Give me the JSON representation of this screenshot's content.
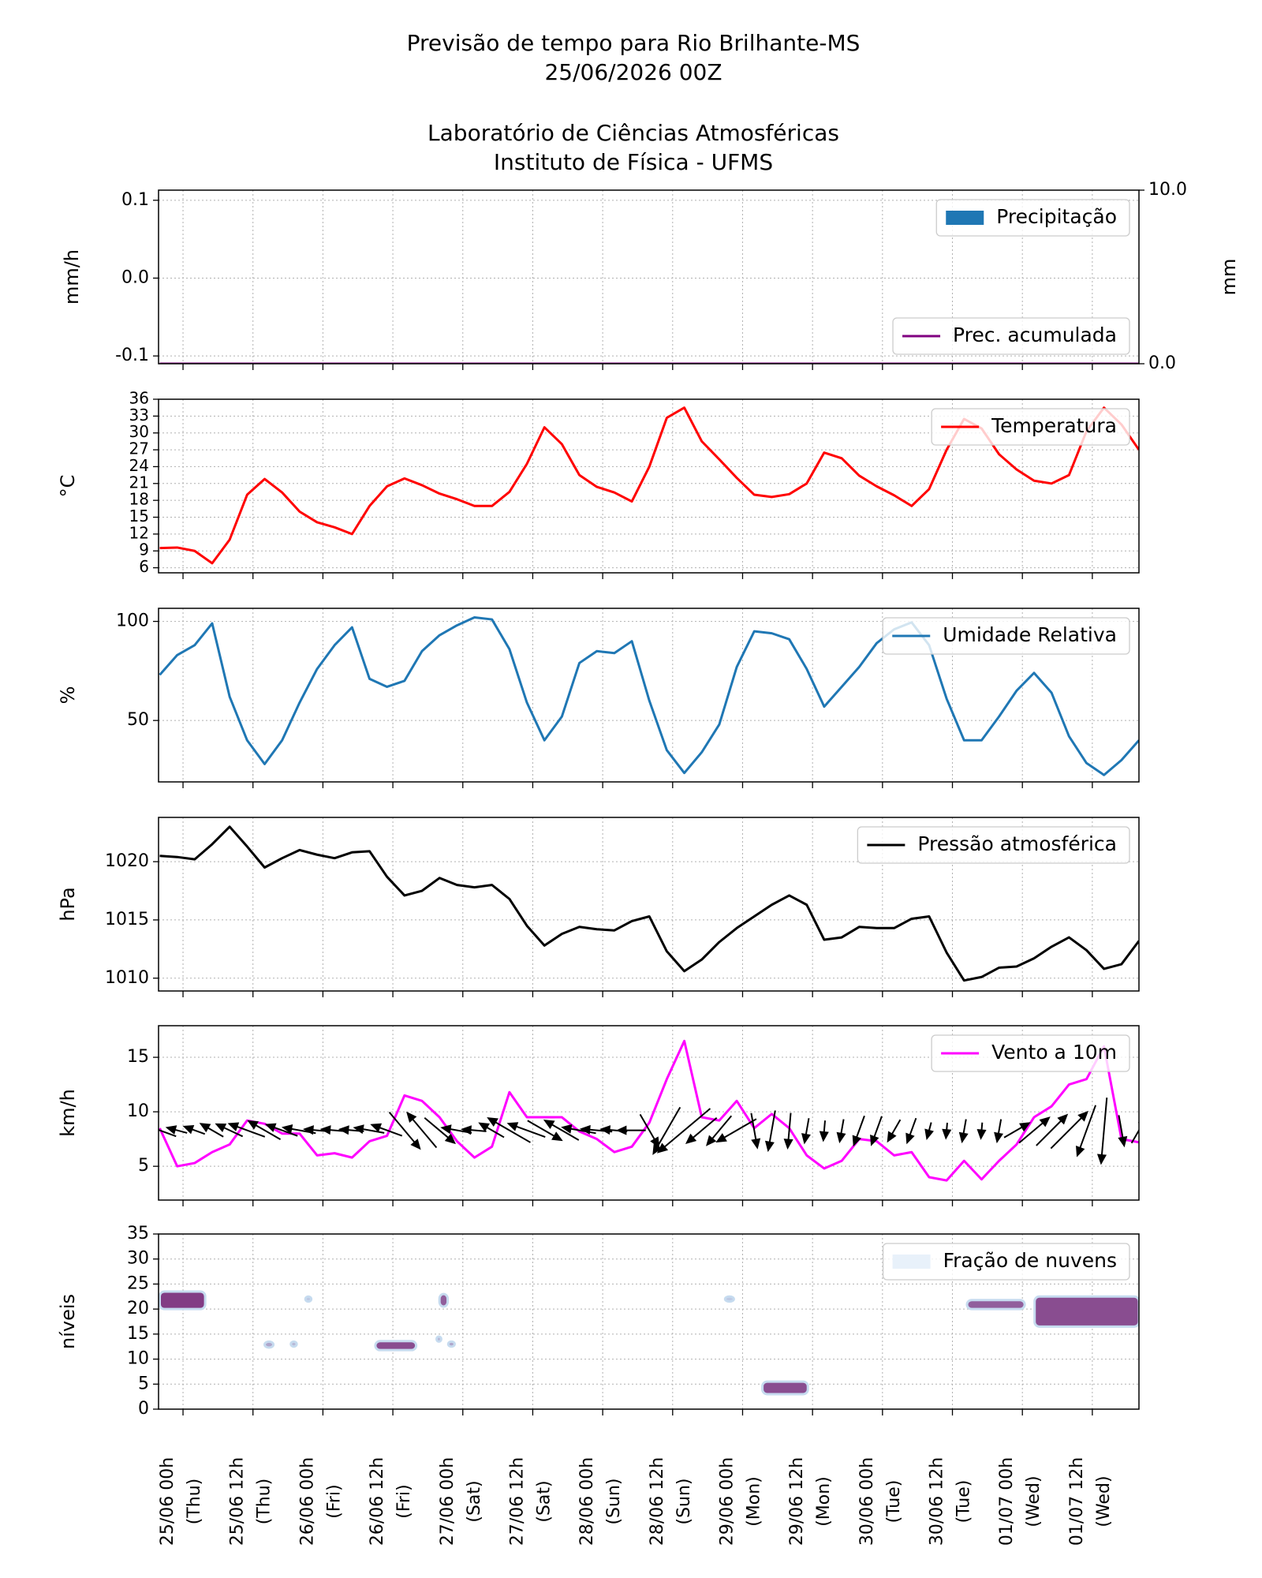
{
  "chart_data": [
    {
      "type": "bar",
      "title_lines": [
        "Previsão de tempo para Rio Brilhante-MS",
        "25/06/2026 00Z",
        "Laboratório de Ciências Atmosféricas",
        "Instituto de Física - UFMS"
      ],
      "ylabel": "mm/h",
      "y2label": "mm",
      "x": [
        -4,
        -1,
        2,
        5,
        8,
        11,
        14,
        17,
        20,
        23,
        26,
        29,
        32,
        35,
        38,
        41,
        44,
        47,
        50,
        53,
        56,
        59,
        62,
        65,
        68,
        71,
        74,
        77,
        80,
        83,
        86,
        89,
        92,
        95,
        98,
        101,
        104,
        107,
        110,
        113,
        116,
        119,
        122,
        125,
        128,
        131,
        134,
        137,
        140,
        143,
        146,
        149,
        152,
        155,
        158,
        161,
        164
      ],
      "series": [
        {
          "name": "Precipitação",
          "color": "#1f77b4",
          "legend": "upper right",
          "values": [
            0,
            0,
            0,
            0,
            0,
            0,
            0,
            0,
            0,
            0,
            0,
            0,
            0,
            0,
            0,
            0,
            0,
            0,
            0,
            0,
            0,
            0,
            0,
            0,
            0,
            0,
            0,
            0,
            0,
            0,
            0,
            0,
            0,
            0,
            0,
            0,
            0,
            0,
            0,
            0,
            0,
            0,
            0,
            0,
            0,
            0,
            0,
            0,
            0,
            0,
            0,
            0,
            0,
            0,
            0,
            0,
            0
          ]
        },
        {
          "name": "Prec. acumulada",
          "color": "#800080",
          "axis": "y2",
          "legend": "lower right",
          "values": [
            0,
            0,
            0,
            0,
            0,
            0,
            0,
            0,
            0,
            0,
            0,
            0,
            0,
            0,
            0,
            0,
            0,
            0,
            0,
            0,
            0,
            0,
            0,
            0,
            0,
            0,
            0,
            0,
            0,
            0,
            0,
            0,
            0,
            0,
            0,
            0,
            0,
            0,
            0,
            0,
            0,
            0,
            0,
            0,
            0,
            0,
            0,
            0,
            0,
            0,
            0,
            0,
            0,
            0,
            0,
            0,
            0
          ]
        }
      ],
      "xlim": [
        -4.2,
        164
      ],
      "ylim": [
        -0.11,
        0.113
      ],
      "yticks": [
        -0.1,
        {
          "value": 0,
          "label": "0.0"
        },
        0.1
      ],
      "y2lim": [
        0,
        10
      ],
      "y2ticks": [
        {
          "value": 0,
          "label": "0.0"
        },
        {
          "value": 10,
          "label": "10.0"
        }
      ],
      "xticks": [
        0,
        12,
        24,
        36,
        48,
        60,
        72,
        84,
        96,
        108,
        120,
        132,
        144,
        156
      ],
      "grid": true
    },
    {
      "type": "line",
      "ylabel": "°C",
      "x": [
        -4,
        -1,
        2,
        5,
        8,
        11,
        14,
        17,
        20,
        23,
        26,
        29,
        32,
        35,
        38,
        41,
        44,
        47,
        50,
        53,
        56,
        59,
        62,
        65,
        68,
        71,
        74,
        77,
        80,
        83,
        86,
        89,
        92,
        95,
        98,
        101,
        104,
        107,
        110,
        113,
        116,
        119,
        122,
        125,
        128,
        131,
        134,
        137,
        140,
        143,
        146,
        149,
        152,
        155,
        158,
        161,
        164
      ],
      "series": [
        {
          "name": "Temperatura",
          "color": "#ff0000",
          "legend": "upper right",
          "values": [
            9.5,
            9.6,
            9,
            6.8,
            11,
            19,
            21.8,
            19.4,
            16,
            14.1,
            13.2,
            12,
            17,
            20.5,
            21.9,
            20.7,
            19.2,
            18.2,
            17,
            17,
            19.5,
            24.5,
            31,
            28,
            22.5,
            20.4,
            19.4,
            17.8,
            24,
            32.7,
            34.5,
            28.5,
            25.3,
            22,
            19,
            18.6,
            19.1,
            21,
            26.5,
            25.5,
            22.4,
            20.5,
            18.9,
            17,
            20,
            27,
            32.5,
            30.8,
            26.2,
            23.5,
            21.5,
            21,
            22.5,
            30.3,
            34.5,
            31.5,
            27
          ]
        }
      ],
      "xlim": [
        -4.2,
        164
      ],
      "ylim": [
        5.1,
        36
      ],
      "yticks": [
        6,
        9,
        12,
        15,
        18,
        21,
        24,
        27,
        30,
        33,
        36
      ],
      "xticks": [
        0,
        12,
        24,
        36,
        48,
        60,
        72,
        84,
        96,
        108,
        120,
        132,
        144,
        156
      ],
      "grid": true
    },
    {
      "type": "line",
      "ylabel": "%",
      "x": [
        -4,
        -1,
        2,
        5,
        8,
        11,
        14,
        17,
        20,
        23,
        26,
        29,
        32,
        35,
        38,
        41,
        44,
        47,
        50,
        53,
        56,
        59,
        62,
        65,
        68,
        71,
        74,
        77,
        80,
        83,
        86,
        89,
        92,
        95,
        98,
        101,
        104,
        107,
        110,
        113,
        116,
        119,
        122,
        125,
        128,
        131,
        134,
        137,
        140,
        143,
        146,
        149,
        152,
        155,
        158,
        161,
        164
      ],
      "series": [
        {
          "name": "Umidade Relativa",
          "color": "#1f77b4",
          "legend": "upper right",
          "values": [
            73,
            83,
            88,
            99,
            62,
            40,
            28,
            40,
            59,
            76,
            88,
            97,
            71,
            67,
            70,
            85,
            93,
            98,
            102,
            101,
            86,
            59,
            40,
            52,
            79,
            85,
            84,
            90,
            60,
            35,
            23.5,
            34,
            48,
            77,
            95,
            94,
            91,
            76,
            57,
            67,
            77,
            89,
            96,
            99.5,
            88,
            61,
            40,
            40,
            52,
            65,
            74,
            64,
            42,
            28.5,
            22.5,
            30,
            40
          ]
        }
      ],
      "xlim": [
        -4.2,
        164
      ],
      "ylim": [
        19,
        106.6
      ],
      "yticks": [
        50,
        100
      ],
      "xticks": [
        0,
        12,
        24,
        36,
        48,
        60,
        72,
        84,
        96,
        108,
        120,
        132,
        144,
        156
      ],
      "grid": true
    },
    {
      "type": "line",
      "ylabel": "hPa",
      "x": [
        -4,
        -1,
        2,
        5,
        8,
        11,
        14,
        17,
        20,
        23,
        26,
        29,
        32,
        35,
        38,
        41,
        44,
        47,
        50,
        53,
        56,
        59,
        62,
        65,
        68,
        71,
        74,
        77,
        80,
        83,
        86,
        89,
        92,
        95,
        98,
        101,
        104,
        107,
        110,
        113,
        116,
        119,
        122,
        125,
        128,
        131,
        134,
        137,
        140,
        143,
        146,
        149,
        152,
        155,
        158,
        161,
        164
      ],
      "series": [
        {
          "name": "Pressão atmosférica",
          "color": "#000000",
          "legend": "upper right",
          "values": [
            1020.5,
            1020.4,
            1020.2,
            1021.5,
            1023,
            1021.3,
            1019.5,
            1020.3,
            1021,
            1020.6,
            1020.3,
            1020.8,
            1020.9,
            1018.7,
            1017.1,
            1017.5,
            1018.6,
            1018,
            1017.8,
            1018,
            1016.8,
            1014.5,
            1012.8,
            1013.8,
            1014.4,
            1014.2,
            1014.1,
            1014.9,
            1015.3,
            1012.3,
            1010.6,
            1011.6,
            1013.1,
            1014.3,
            1015.3,
            1016.3,
            1017.1,
            1016.3,
            1013.3,
            1013.5,
            1014.4,
            1014.3,
            1014.3,
            1015.1,
            1015.3,
            1012.2,
            1009.8,
            1010.1,
            1010.9,
            1011,
            1011.7,
            1012.7,
            1013.5,
            1012.4,
            1010.8,
            1011.2,
            1013.2
          ]
        }
      ],
      "xlim": [
        -4.2,
        164
      ],
      "ylim": [
        1008.9,
        1023.8
      ],
      "yticks": [
        1010,
        1015,
        1020
      ],
      "xticks": [
        0,
        12,
        24,
        36,
        48,
        60,
        72,
        84,
        96,
        108,
        120,
        132,
        144,
        156
      ],
      "grid": true
    },
    {
      "type": "line",
      "ylabel": "km/h",
      "arrow_color": "#000000",
      "x": [
        -4,
        -1,
        2,
        5,
        8,
        11,
        14,
        17,
        20,
        23,
        26,
        29,
        32,
        35,
        38,
        41,
        44,
        47,
        50,
        53,
        56,
        59,
        62,
        65,
        68,
        71,
        74,
        77,
        80,
        83,
        86,
        89,
        92,
        95,
        98,
        101,
        104,
        107,
        110,
        113,
        116,
        119,
        122,
        125,
        128,
        131,
        134,
        137,
        140,
        143,
        146,
        149,
        152,
        155,
        158,
        161,
        164
      ],
      "series": [
        {
          "name": "Vento a 10m",
          "color": "#ff00ff",
          "legend": "upper right",
          "values": [
            8.5,
            5,
            5.3,
            6.3,
            7,
            9.2,
            8.9,
            8,
            8,
            6,
            6.2,
            5.8,
            7.3,
            7.8,
            11.5,
            11,
            9.5,
            7.3,
            5.8,
            6.8,
            11.8,
            9.5,
            9.5,
            9.5,
            8.2,
            7.5,
            6.3,
            6.8,
            9,
            13,
            16.5,
            9.5,
            9.2,
            11,
            8.5,
            9.8,
            8.5,
            6,
            4.8,
            5.5,
            7.5,
            7.3,
            6,
            6.3,
            4,
            3.7,
            5.5,
            3.8,
            5.5,
            7,
            9.5,
            10.5,
            12.5,
            13,
            16,
            7.5,
            7.2
          ]
        }
      ],
      "arrow_directions": [
        160,
        165,
        160,
        150,
        155,
        160,
        150,
        160,
        170,
        175,
        175,
        175,
        170,
        160,
        -50,
        130,
        -40,
        170,
        175,
        150,
        150,
        160,
        -30,
        150,
        170,
        175,
        175,
        180,
        -60,
        -120,
        -140,
        -140,
        -130,
        -150,
        -80,
        -100,
        -95,
        -100,
        -95,
        -100,
        -110,
        -110,
        -120,
        -110,
        -105,
        -95,
        -100,
        -95,
        -100,
        30,
        40,
        45,
        45,
        -110,
        -95,
        -80,
        60
      ],
      "xlim": [
        -4.2,
        164
      ],
      "ylim": [
        1.9,
        17.9
      ],
      "yticks": [
        5,
        10,
        15
      ],
      "xticks": [
        0,
        12,
        24,
        36,
        48,
        60,
        72,
        84,
        96,
        108,
        120,
        132,
        144,
        156
      ],
      "grid": true
    },
    {
      "type": "patches",
      "ylabel": "níveis",
      "name": "Fração de nuvens",
      "color": "#e8f1fa",
      "legend": "upper right",
      "colormap": [
        "#c6dbef",
        "#7a2a78"
      ],
      "patches": [
        {
          "x": [
            -4,
            3.8
          ],
          "levels": [
            20,
            23.5
          ],
          "fraction": 0.9
        },
        {
          "x": [
            14,
            15.5
          ],
          "levels": [
            12.3,
            13.5
          ],
          "fraction": 0.3
        },
        {
          "x": [
            18.5,
            19.5
          ],
          "levels": [
            12.5,
            13.5
          ],
          "fraction": 0.2
        },
        {
          "x": [
            21,
            22
          ],
          "levels": [
            21.5,
            22.5
          ],
          "fraction": 0.1
        },
        {
          "x": [
            33,
            40
          ],
          "levels": [
            11.8,
            13.6
          ],
          "fraction": 0.8
        },
        {
          "x": [
            43.5,
            44.3
          ],
          "levels": [
            13.5,
            14.5
          ],
          "fraction": 0.2
        },
        {
          "x": [
            44,
            45.4
          ],
          "levels": [
            20.5,
            23
          ],
          "fraction": 0.7
        },
        {
          "x": [
            45.5,
            46.6
          ],
          "levels": [
            12.5,
            13.5
          ],
          "fraction": 0.3
        },
        {
          "x": [
            93,
            94.5
          ],
          "levels": [
            21.5,
            22.5
          ],
          "fraction": 0.1
        },
        {
          "x": [
            99.4,
            107.2
          ],
          "levels": [
            3,
            5.5
          ],
          "fraction": 0.8
        },
        {
          "x": [
            134.5,
            144.4
          ],
          "levels": [
            20,
            21.8
          ],
          "fraction": 0.7
        },
        {
          "x": [
            146.1,
            164
          ],
          "levels": [
            16.5,
            22.5
          ],
          "fraction": 0.8
        }
      ],
      "xlim": [
        -4.2,
        164
      ],
      "ylim": [
        0,
        35
      ],
      "yticks": [
        0,
        5,
        10,
        15,
        20,
        25,
        30,
        35
      ],
      "xticks": [
        {
          "value": 0,
          "label": "25/06 00h",
          "day": "(Thu)"
        },
        {
          "value": 12,
          "label": "25/06 12h",
          "day": "(Thu)"
        },
        {
          "value": 24,
          "label": "26/06 00h",
          "day": "(Fri)"
        },
        {
          "value": 36,
          "label": "26/06 12h",
          "day": "(Fri)"
        },
        {
          "value": 48,
          "label": "27/06 00h",
          "day": "(Sat)"
        },
        {
          "value": 60,
          "label": "27/06 12h",
          "day": "(Sat)"
        },
        {
          "value": 72,
          "label": "28/06 00h",
          "day": "(Sun)"
        },
        {
          "value": 84,
          "label": "28/06 12h",
          "day": "(Sun)"
        },
        {
          "value": 96,
          "label": "29/06 00h",
          "day": "(Mon)"
        },
        {
          "value": 108,
          "label": "29/06 12h",
          "day": "(Mon)"
        },
        {
          "value": 120,
          "label": "30/06 00h",
          "day": "(Tue)"
        },
        {
          "value": 132,
          "label": "30/06 12h",
          "day": "(Tue)"
        },
        {
          "value": 144,
          "label": "01/07 00h",
          "day": "(Wed)"
        },
        {
          "value": 156,
          "label": "01/07 12h",
          "day": "(Wed)"
        }
      ],
      "grid": true
    }
  ]
}
